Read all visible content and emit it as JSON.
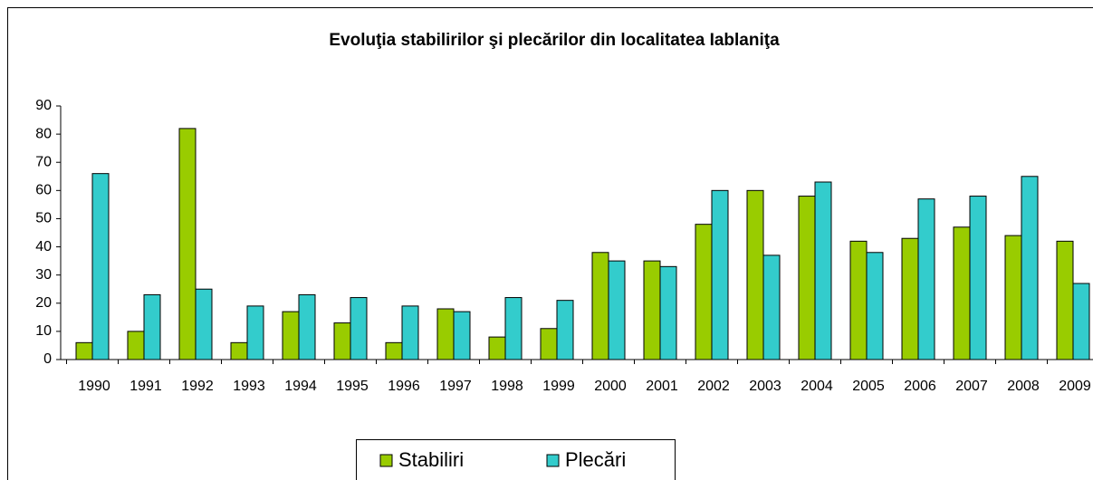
{
  "chart_data": {
    "type": "bar",
    "title": "Evoluţia stabilirilor şi plecărilor din localitatea Iablaniţa",
    "categories": [
      "1990",
      "1991",
      "1992",
      "1993",
      "1994",
      "1995",
      "1996",
      "1997",
      "1998",
      "1999",
      "2000",
      "2001",
      "2002",
      "2003",
      "2004",
      "2005",
      "2006",
      "2007",
      "2008",
      "2009"
    ],
    "series": [
      {
        "name": "Stabiliri",
        "color": "#99cc00",
        "values": [
          6,
          10,
          82,
          6,
          17,
          13,
          6,
          18,
          8,
          11,
          38,
          35,
          48,
          60,
          58,
          42,
          43,
          47,
          44,
          42
        ]
      },
      {
        "name": "Plecări",
        "color": "#33cccc",
        "values": [
          66,
          23,
          25,
          19,
          23,
          22,
          19,
          17,
          22,
          21,
          35,
          33,
          60,
          37,
          63,
          38,
          57,
          58,
          65,
          27
        ]
      }
    ],
    "ylim": [
      0,
      90
    ],
    "yticks": [
      0,
      10,
      20,
      30,
      40,
      50,
      60,
      70,
      80,
      90
    ],
    "grid": false,
    "legend": "bottom"
  }
}
